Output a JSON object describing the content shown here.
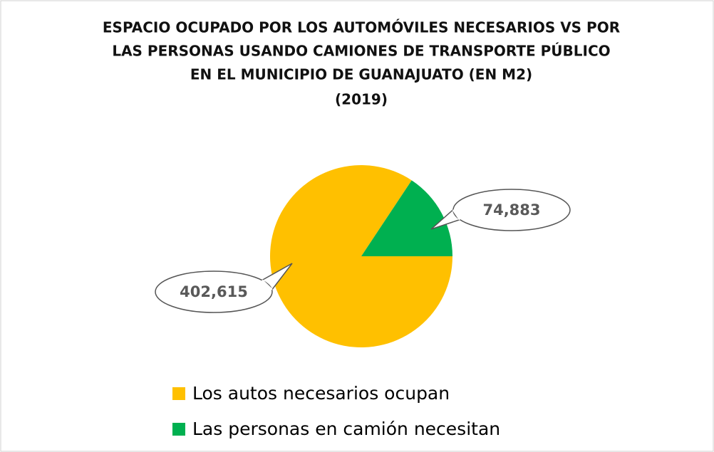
{
  "chart_data": {
    "type": "pie",
    "title": [
      "ESPACIO OCUPADO POR LOS AUTOMÓVILES NECESARIOS VS POR",
      "LAS PERSONAS USANDO CAMIONES DE TRANSPORTE PÚBLICO",
      "EN EL MUNICIPIO DE GUANAJUATO (EN M2)",
      "(2019)"
    ],
    "categories": [
      "Los autos necesarios ocupan",
      "Las personas en camión necesitan"
    ],
    "values": [
      402615,
      74883
    ],
    "value_labels": [
      "402,615",
      "74,883"
    ],
    "colors": [
      "#FFC000",
      "#00B050"
    ],
    "legend": "bottom"
  }
}
